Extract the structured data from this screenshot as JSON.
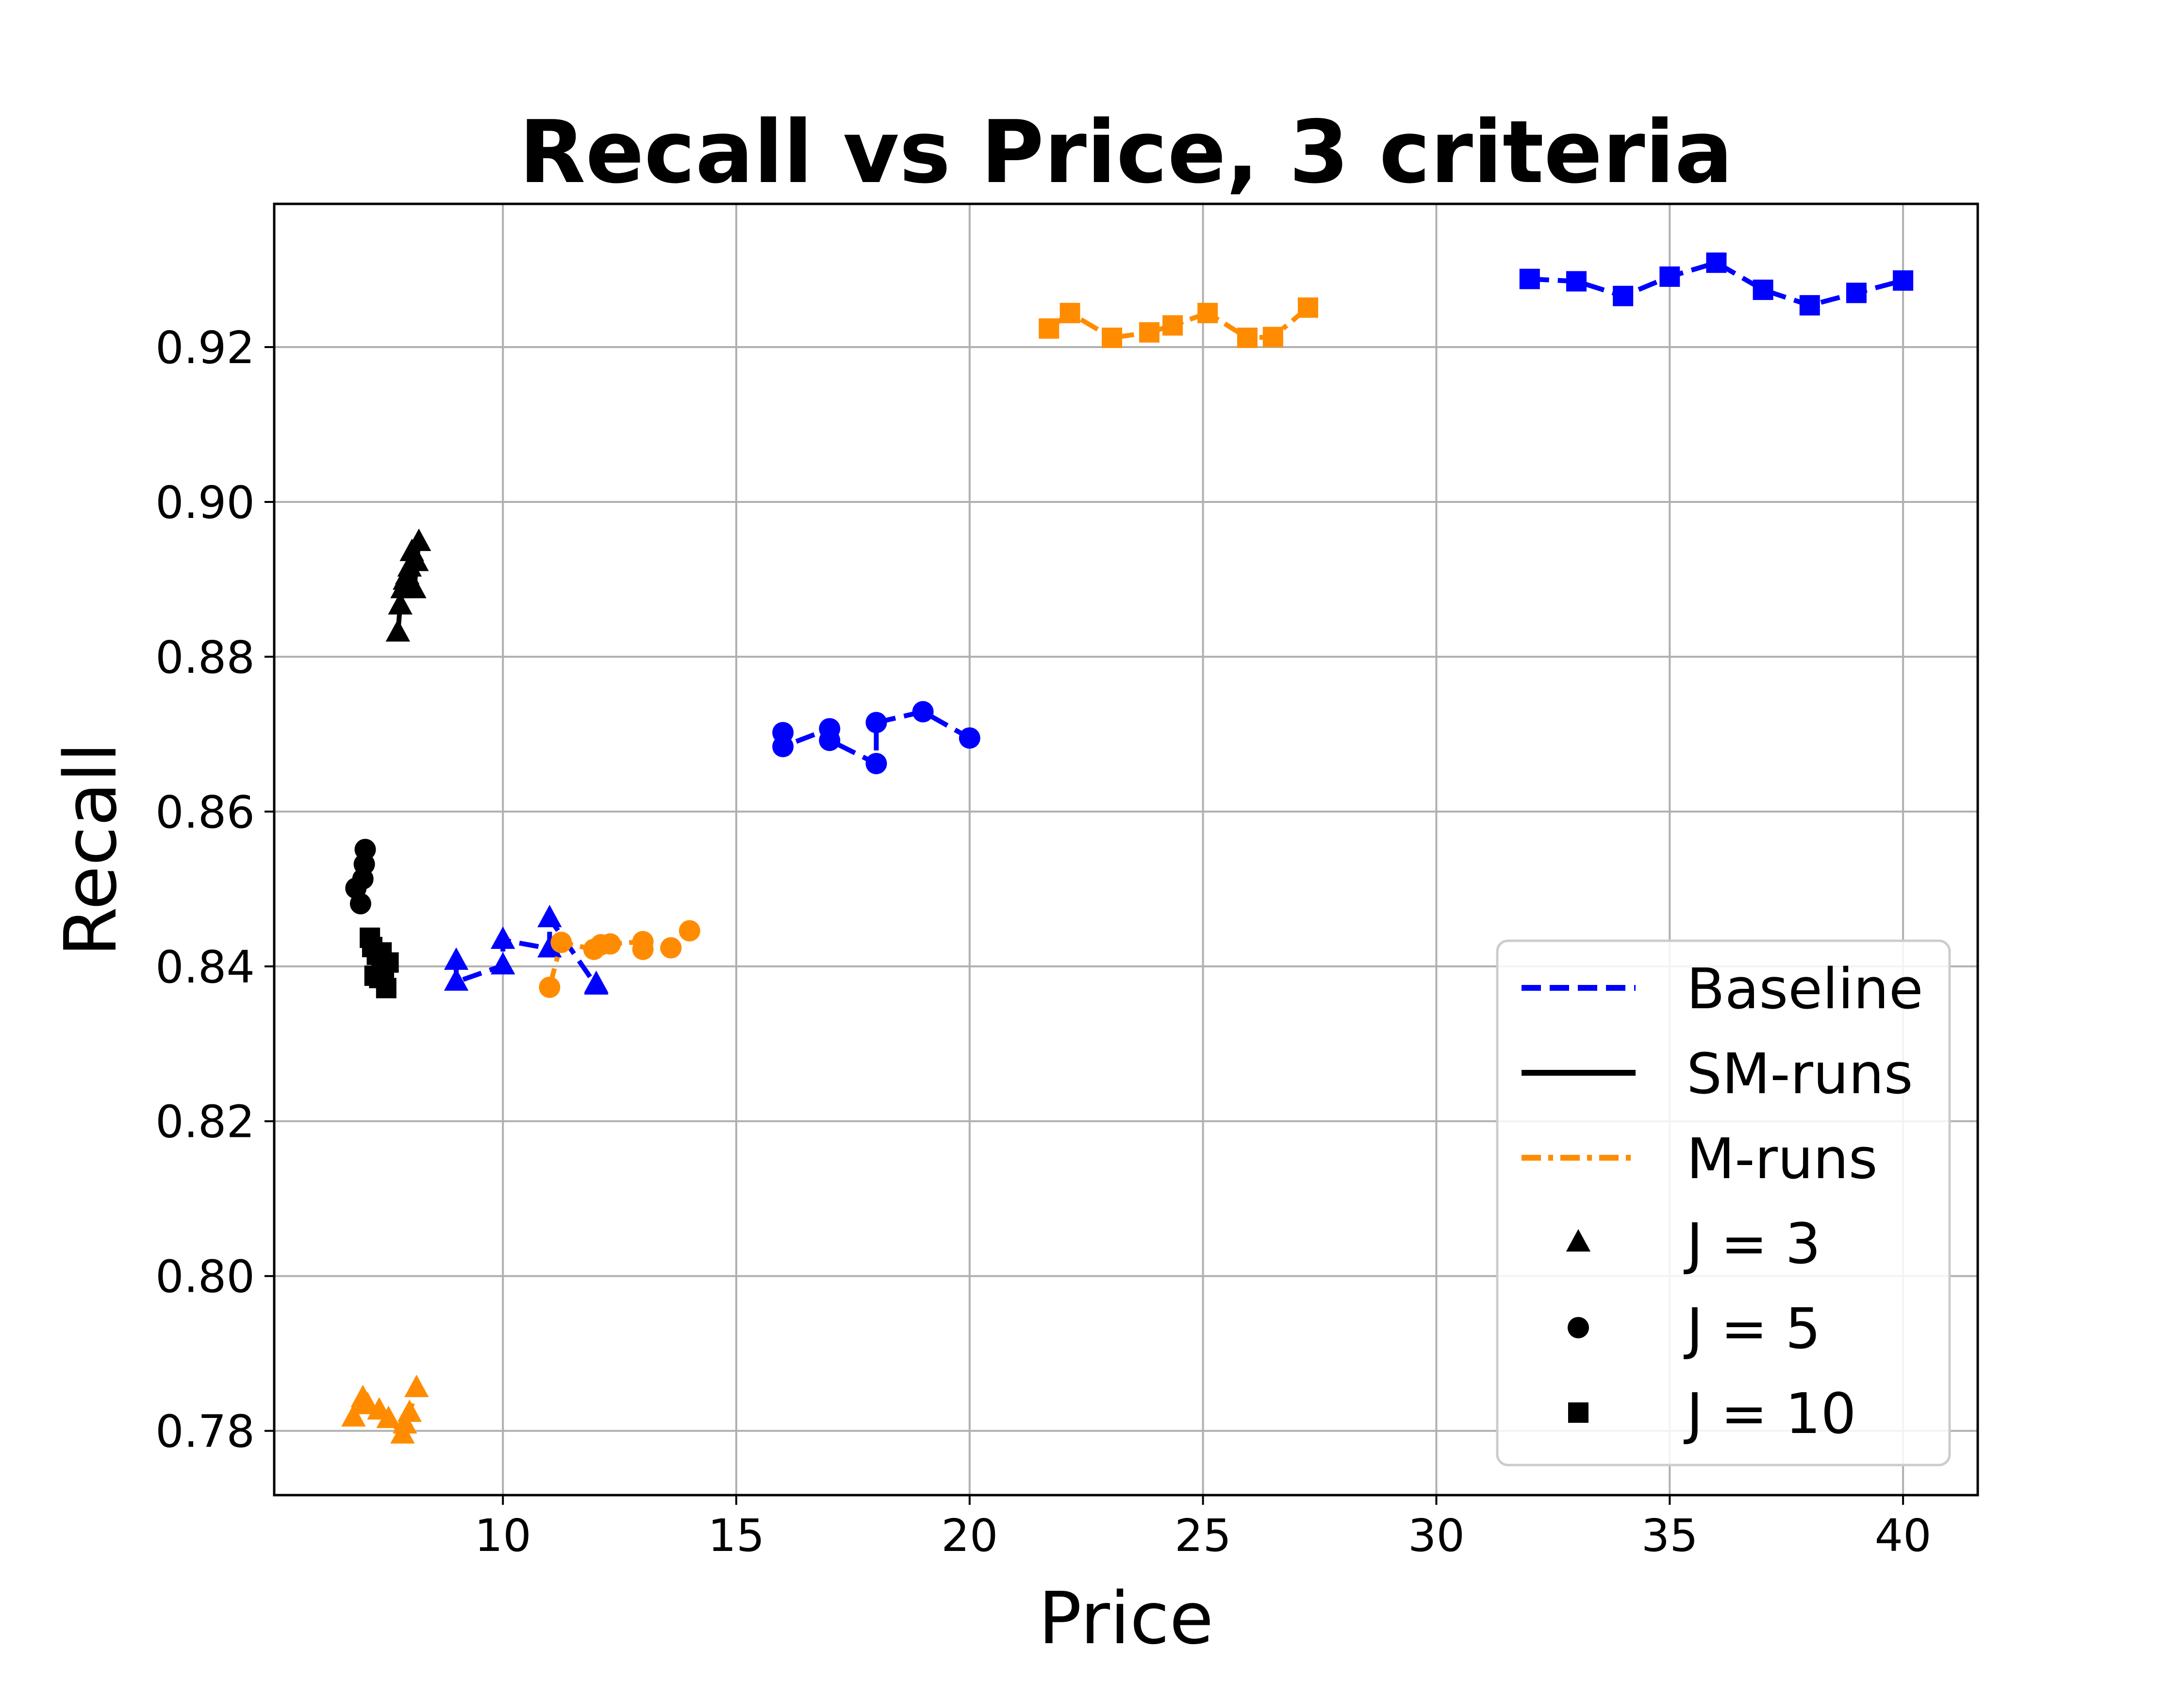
{
  "chart_data": {
    "type": "line",
    "title": "Recall vs Price, 3 criteria",
    "xlabel": "Price",
    "ylabel": "Recall",
    "xlim": [
      5.1,
      41.6
    ],
    "ylim": [
      0.7717,
      0.9385
    ],
    "xticks": [
      10,
      15,
      20,
      25,
      30,
      35,
      40
    ],
    "yticks": [
      0.78,
      0.8,
      0.82,
      0.84,
      0.86,
      0.88,
      0.9,
      0.92
    ],
    "xtick_labels": [
      "10",
      "15",
      "20",
      "25",
      "30",
      "35",
      "40"
    ],
    "ytick_labels": [
      "0.78",
      "0.80",
      "0.82",
      "0.84",
      "0.86",
      "0.88",
      "0.90",
      "0.92"
    ],
    "grid": true,
    "legend_position": "lower-right",
    "legend": [
      {
        "label": "Baseline",
        "kind": "line",
        "color": "#0000ff",
        "dash": "dashed"
      },
      {
        "label": "SM-runs",
        "kind": "line",
        "color": "#000000",
        "dash": "solid"
      },
      {
        "label": "M-runs",
        "kind": "line",
        "color": "#ff8c00",
        "dash": "dashdot"
      },
      {
        "label": "J = 3",
        "kind": "marker",
        "marker": "triangle",
        "color": "#000000"
      },
      {
        "label": "J = 5",
        "kind": "marker",
        "marker": "circle",
        "color": "#000000"
      },
      {
        "label": "J = 10",
        "kind": "marker",
        "marker": "square",
        "color": "#000000"
      }
    ],
    "series": [
      {
        "group": "Baseline",
        "J": 3,
        "color": "#0000ff",
        "dash": "dashed",
        "marker": "triangle",
        "x": [
          9,
          9,
          10,
          10,
          11,
          11,
          12,
          12
        ],
        "y": [
          0.8407,
          0.838,
          0.8401,
          0.8434,
          0.8423,
          0.8462,
          0.8375,
          0.8377
        ]
      },
      {
        "group": "Baseline",
        "J": 5,
        "color": "#0000ff",
        "dash": "dashed",
        "marker": "circle",
        "x": [
          16,
          16,
          17,
          17,
          18,
          18,
          19,
          20
        ],
        "y": [
          0.8702,
          0.8684,
          0.8707,
          0.8692,
          0.8662,
          0.8715,
          0.8729,
          0.8695
        ]
      },
      {
        "group": "Baseline",
        "J": 10,
        "color": "#0000ff",
        "dash": "dashed",
        "marker": "square",
        "x": [
          32,
          33,
          34,
          35,
          36,
          37,
          38,
          39,
          40
        ],
        "y": [
          0.9288,
          0.9285,
          0.9266,
          0.9291,
          0.9309,
          0.9274,
          0.9254,
          0.927,
          0.9286
        ]
      },
      {
        "group": "SM-runs",
        "J": 3,
        "color": "#000000",
        "dash": "solid",
        "marker": "triangle",
        "x": [
          7.75,
          7.8,
          7.85,
          7.9,
          7.95,
          8.0,
          8.05,
          8.1,
          8.15,
          8.2
        ],
        "y": [
          0.8831,
          0.8866,
          0.8887,
          0.8898,
          0.8905,
          0.8915,
          0.8935,
          0.8887,
          0.8922,
          0.8948
        ]
      },
      {
        "group": "SM-runs",
        "J": 5,
        "color": "#000000",
        "dash": "solid",
        "marker": "circle",
        "x": [
          6.85,
          6.95,
          7.0,
          7.03,
          7.05
        ],
        "y": [
          0.8501,
          0.8481,
          0.8513,
          0.8532,
          0.8551
        ]
      },
      {
        "group": "SM-runs",
        "J": 10,
        "color": "#000000",
        "dash": "solid",
        "marker": "square",
        "x": [
          7.15,
          7.2,
          7.25,
          7.3,
          7.35,
          7.4,
          7.45,
          7.5,
          7.55
        ],
        "y": [
          0.8437,
          0.8425,
          0.8388,
          0.8415,
          0.8385,
          0.8418,
          0.8395,
          0.8372,
          0.8405
        ]
      },
      {
        "group": "M-runs",
        "J": 3,
        "color": "#ff8c00",
        "dash": "dashdot",
        "marker": "triangle",
        "x": [
          6.8,
          7.0,
          7.1,
          7.35,
          7.55,
          7.85,
          7.9,
          8.0,
          8.15
        ],
        "y": [
          0.7817,
          0.7842,
          0.7833,
          0.7826,
          0.7815,
          0.7795,
          0.7808,
          0.7823,
          0.7855
        ]
      },
      {
        "group": "M-runs",
        "J": 5,
        "color": "#ff8c00",
        "dash": "dashdot",
        "marker": "circle",
        "x": [
          11.0,
          11.25,
          11.95,
          12.1,
          12.3,
          13.0,
          13.0,
          13.6,
          14.0
        ],
        "y": [
          0.8373,
          0.8431,
          0.8422,
          0.8428,
          0.8429,
          0.8432,
          0.8422,
          0.8424,
          0.8446
        ]
      },
      {
        "group": "M-runs",
        "J": 10,
        "color": "#ff8c00",
        "dash": "dashdot",
        "marker": "square",
        "x": [
          21.7,
          22.15,
          23.05,
          23.85,
          24.35,
          25.1,
          25.95,
          26.5,
          27.25
        ],
        "y": [
          0.9224,
          0.9244,
          0.9212,
          0.9219,
          0.9228,
          0.9244,
          0.9212,
          0.9213,
          0.9251
        ]
      }
    ]
  }
}
